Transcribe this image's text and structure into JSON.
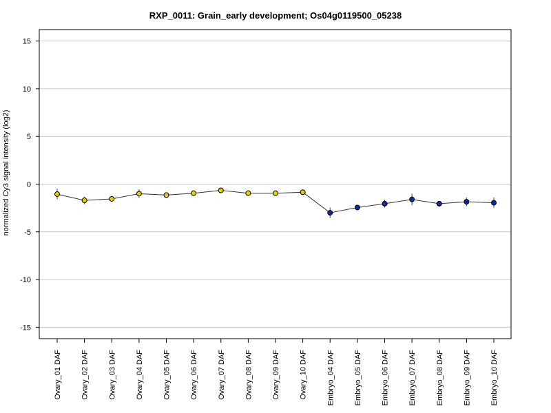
{
  "chart_data": {
    "type": "line",
    "title": "RXP_0011: Grain_early development; Os04g0119500_05238",
    "xlabel": "",
    "ylabel": "normalized Cy3 signal intensity (log2)",
    "ylim": [
      -16.2,
      16.2
    ],
    "yticks": [
      15,
      10,
      5,
      0,
      -5,
      -10,
      -15
    ],
    "grid": true,
    "categories": [
      "Ovary_01 DAF",
      "Ovary_02 DAF",
      "Ovary_03 DAF",
      "Ovary_04 DAF",
      "Ovary_05 DAF",
      "Ovary_06 DAF",
      "Ovary_07 DAF",
      "Ovary_08 DAF",
      "Ovary_09 DAF",
      "Ovary_10 DAF",
      "Embryo_04 DAF",
      "Embryo_05 DAF",
      "Embryo_06 DAF",
      "Embryo_07 DAF",
      "Embryo_08 DAF",
      "Embryo_09 DAF",
      "Embryo_10 DAF"
    ],
    "series": [
      {
        "values": [
          -1.05,
          -1.7,
          -1.55,
          -1.0,
          -1.15,
          -0.95,
          -0.65,
          -0.95,
          -0.95,
          -0.85,
          -3.0,
          -2.45,
          -2.05,
          -1.6,
          -2.05,
          -1.85,
          -1.95
        ],
        "error": [
          0.55,
          0.4,
          0.2,
          0.45,
          0.2,
          0.15,
          0.2,
          0.15,
          0.1,
          0.25,
          0.55,
          0.2,
          0.4,
          0.6,
          0.15,
          0.45,
          0.55
        ],
        "colors": [
          "#e8d000",
          "#e8d000",
          "#e8d000",
          "#e8d000",
          "#e8d000",
          "#e8d000",
          "#e8d000",
          "#e8d000",
          "#e8d000",
          "#e8d000",
          "#1029a8",
          "#1029a8",
          "#1029a8",
          "#1029a8",
          "#1029a8",
          "#1029a8",
          "#1029a8"
        ]
      }
    ]
  }
}
